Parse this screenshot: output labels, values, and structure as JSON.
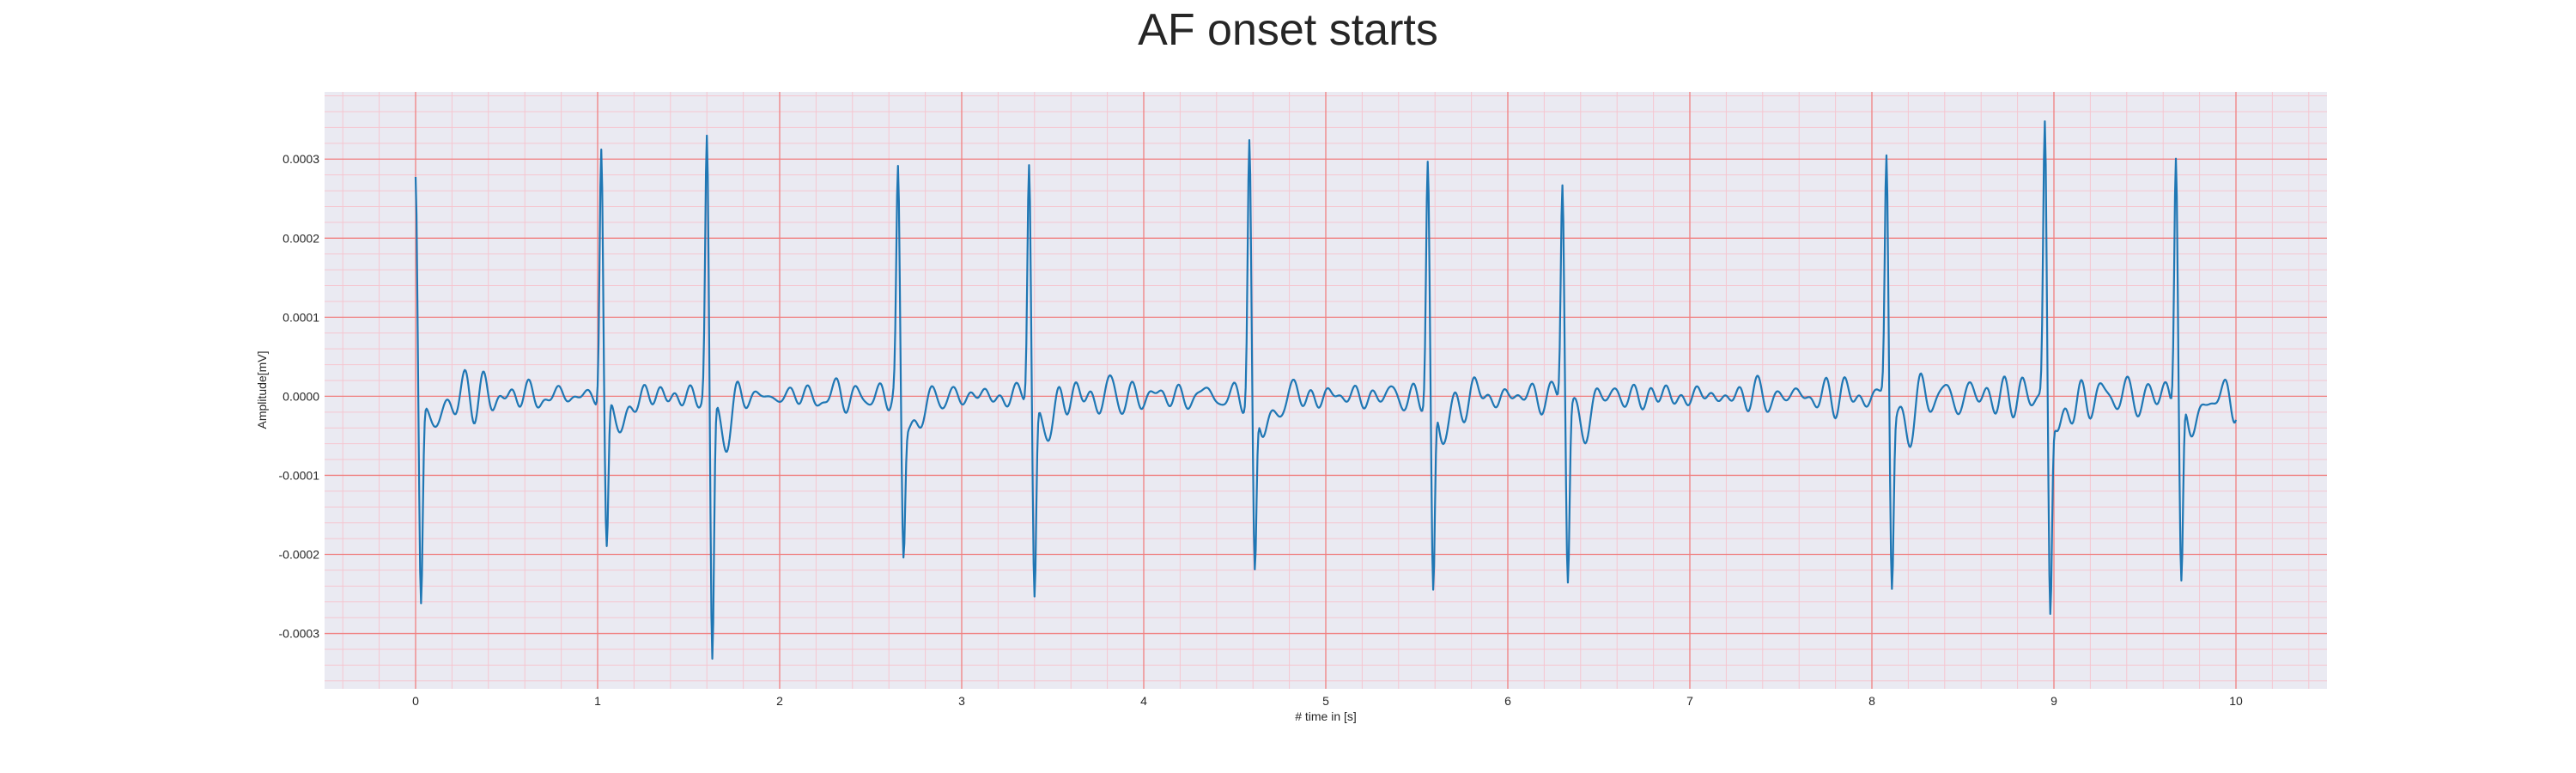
{
  "chart_data": {
    "type": "line",
    "title": "AF onset starts",
    "xlabel": "# time in [s]",
    "ylabel": "Amplitude[mV]",
    "xlim": [
      -0.5,
      10.5
    ],
    "ylim": [
      -0.00037,
      0.000385
    ],
    "x_ticks": [
      0,
      1,
      2,
      3,
      4,
      5,
      6,
      7,
      8,
      9,
      10
    ],
    "x_tick_labels": [
      "0",
      "1",
      "2",
      "3",
      "4",
      "5",
      "6",
      "7",
      "8",
      "9",
      "10"
    ],
    "y_ticks": [
      -0.0003,
      -0.0002,
      -0.0001,
      0.0,
      0.0001,
      0.0002,
      0.0003
    ],
    "y_tick_labels": [
      "-0.0003",
      "-0.0002",
      "-0.0001",
      "0.0000",
      "0.0001",
      "0.0002",
      "0.0003"
    ],
    "grid": true,
    "line_color": "#1f77b4",
    "grid_major_color": "#f08080",
    "grid_minor_color": "#f5c6d0",
    "plot_background": "#eaeaf2",
    "series": [
      {
        "qrs_complexes": [
          {
            "t": 0.0,
            "r": 0.00029,
            "s": -0.00025
          },
          {
            "t": 1.02,
            "r": 0.000325,
            "s": -0.00019
          },
          {
            "t": 1.6,
            "r": 0.000325,
            "s": -0.000335
          },
          {
            "t": 2.65,
            "r": 0.00027,
            "s": -0.000185
          },
          {
            "t": 3.37,
            "r": 0.0003,
            "s": -0.00025
          },
          {
            "t": 4.58,
            "r": 0.000315,
            "s": -0.00023
          },
          {
            "t": 5.56,
            "r": 0.00029,
            "s": -0.00026
          },
          {
            "t": 6.3,
            "r": 0.000285,
            "s": -0.00022
          },
          {
            "t": 8.08,
            "r": 0.000305,
            "s": -0.000225
          },
          {
            "t": 8.95,
            "r": 0.000345,
            "s": -0.000265
          },
          {
            "t": 9.67,
            "r": 0.00032,
            "s": -0.000235
          }
        ],
        "baseline_amplitude": 2e-05,
        "sample_count": 2000
      }
    ]
  }
}
